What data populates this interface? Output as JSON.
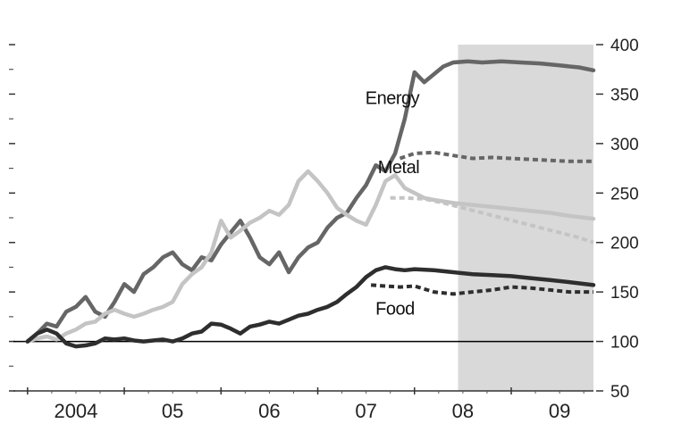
{
  "chart_data": {
    "type": "line",
    "title": "",
    "xlabel": "",
    "ylabel": "",
    "ylim": [
      50,
      400
    ],
    "y_ticks": [
      50,
      100,
      150,
      200,
      250,
      300,
      350,
      400
    ],
    "y_tick_labels": [
      "50",
      "100",
      "150",
      "200",
      "250",
      "300",
      "350",
      "400"
    ],
    "y_axis_side": "right",
    "x_range": [
      2003.9,
      2009.85
    ],
    "x_year_ticks": [
      2004,
      2005,
      2006,
      2007,
      2008,
      2009,
      2010
    ],
    "x_labels": [
      {
        "text": "2004",
        "x": 2004.5
      },
      {
        "text": "05",
        "x": 2005.5
      },
      {
        "text": "06",
        "x": 2006.5
      },
      {
        "text": "07",
        "x": 2007.5
      },
      {
        "text": "08",
        "x": 2008.5
      },
      {
        "text": "09",
        "x": 2009.5
      }
    ],
    "reference_line": 100,
    "forecast_shading": {
      "from": 2008.45,
      "to": 2009.85,
      "color": "#d9d9d9"
    },
    "grid": false,
    "legend": "inline-labels",
    "colors": {
      "energy": "#666666",
      "metal": "#c4c4c4",
      "food": "#2e2e2e",
      "reference": "#000000"
    },
    "series": [
      {
        "name": "Energy",
        "label_at": [
          2008.05,
          340
        ],
        "x": [
          2004.0,
          2004.1,
          2004.2,
          2004.3,
          2004.4,
          2004.5,
          2004.6,
          2004.7,
          2004.8,
          2004.9,
          2005.0,
          2005.1,
          2005.2,
          2005.3,
          2005.4,
          2005.5,
          2005.6,
          2005.7,
          2005.8,
          2005.9,
          2006.0,
          2006.1,
          2006.2,
          2006.3,
          2006.4,
          2006.5,
          2006.6,
          2006.7,
          2006.8,
          2006.9,
          2007.0,
          2007.1,
          2007.2,
          2007.3,
          2007.4,
          2007.5,
          2007.6,
          2007.7,
          2007.8,
          2007.9,
          2008.0,
          2008.1,
          2008.2,
          2008.3,
          2008.4,
          2008.55,
          2008.7,
          2008.9,
          2009.1,
          2009.3,
          2009.5,
          2009.7,
          2009.85
        ],
        "y": [
          100,
          108,
          118,
          115,
          130,
          135,
          145,
          130,
          125,
          140,
          158,
          150,
          168,
          175,
          185,
          190,
          178,
          172,
          185,
          182,
          198,
          210,
          222,
          205,
          185,
          178,
          190,
          170,
          185,
          195,
          200,
          215,
          225,
          230,
          245,
          258,
          278,
          272,
          290,
          325,
          372,
          362,
          370,
          378,
          382,
          383,
          382,
          383,
          382,
          381,
          379,
          377,
          374
        ]
      },
      {
        "name": "Energy forecast",
        "style": "dashed",
        "x": [
          2007.85,
          2008.0,
          2008.2,
          2008.4,
          2008.6,
          2008.8,
          2009.0,
          2009.2,
          2009.4,
          2009.6,
          2009.85
        ],
        "y": [
          285,
          290,
          291,
          288,
          285,
          286,
          285,
          284,
          283,
          282,
          282
        ]
      },
      {
        "name": "Metal",
        "label_at": [
          2008.05,
          270
        ],
        "x": [
          2004.0,
          2004.1,
          2004.2,
          2004.3,
          2004.4,
          2004.5,
          2004.6,
          2004.7,
          2004.8,
          2004.9,
          2005.0,
          2005.1,
          2005.2,
          2005.3,
          2005.4,
          2005.5,
          2005.6,
          2005.7,
          2005.8,
          2005.9,
          2006.0,
          2006.1,
          2006.2,
          2006.3,
          2006.4,
          2006.5,
          2006.6,
          2006.7,
          2006.8,
          2006.9,
          2007.0,
          2007.1,
          2007.2,
          2007.3,
          2007.4,
          2007.5,
          2007.6,
          2007.7,
          2007.8,
          2007.9,
          2008.0,
          2008.1,
          2008.2,
          2008.4,
          2008.6,
          2008.8,
          2009.0,
          2009.2,
          2009.4,
          2009.6,
          2009.85
        ],
        "y": [
          100,
          103,
          105,
          102,
          108,
          112,
          118,
          120,
          128,
          132,
          128,
          125,
          128,
          132,
          135,
          140,
          158,
          168,
          175,
          190,
          222,
          205,
          212,
          220,
          225,
          232,
          228,
          238,
          262,
          272,
          262,
          250,
          235,
          228,
          222,
          218,
          238,
          262,
          268,
          255,
          250,
          245,
          243,
          240,
          238,
          236,
          234,
          232,
          230,
          227,
          224
        ]
      },
      {
        "name": "Metal forecast",
        "style": "dashed",
        "x": [
          2007.75,
          2007.9,
          2008.1,
          2008.3,
          2008.5,
          2008.7,
          2008.9,
          2009.1,
          2009.3,
          2009.5,
          2009.7,
          2009.85
        ],
        "y": [
          245,
          245,
          244,
          240,
          235,
          230,
          225,
          220,
          215,
          210,
          205,
          200
        ]
      },
      {
        "name": "Food",
        "label_at": [
          2008.0,
          127
        ],
        "x": [
          2004.0,
          2004.1,
          2004.2,
          2004.3,
          2004.4,
          2004.5,
          2004.6,
          2004.7,
          2004.8,
          2004.9,
          2005.0,
          2005.1,
          2005.2,
          2005.3,
          2005.4,
          2005.5,
          2005.6,
          2005.7,
          2005.8,
          2005.9,
          2006.0,
          2006.1,
          2006.2,
          2006.3,
          2006.4,
          2006.5,
          2006.6,
          2006.7,
          2006.8,
          2006.9,
          2007.0,
          2007.1,
          2007.2,
          2007.3,
          2007.4,
          2007.5,
          2007.6,
          2007.7,
          2007.8,
          2007.9,
          2008.0,
          2008.2,
          2008.4,
          2008.6,
          2008.8,
          2009.0,
          2009.2,
          2009.4,
          2009.6,
          2009.85
        ],
        "y": [
          100,
          108,
          112,
          108,
          98,
          95,
          96,
          98,
          103,
          102,
          103,
          101,
          100,
          101,
          102,
          100,
          103,
          108,
          110,
          118,
          117,
          113,
          108,
          115,
          117,
          120,
          118,
          122,
          126,
          128,
          132,
          135,
          140,
          148,
          155,
          165,
          172,
          175,
          173,
          172,
          173,
          172,
          170,
          168,
          167,
          166,
          164,
          162,
          160,
          157
        ]
      },
      {
        "name": "Food forecast",
        "style": "dashed",
        "x": [
          2007.55,
          2007.7,
          2007.85,
          2008.0,
          2008.2,
          2008.4,
          2008.6,
          2008.8,
          2009.0,
          2009.2,
          2009.4,
          2009.6,
          2009.85
        ],
        "y": [
          157,
          156,
          155,
          156,
          150,
          148,
          150,
          152,
          155,
          154,
          152,
          150,
          150
        ]
      }
    ]
  }
}
